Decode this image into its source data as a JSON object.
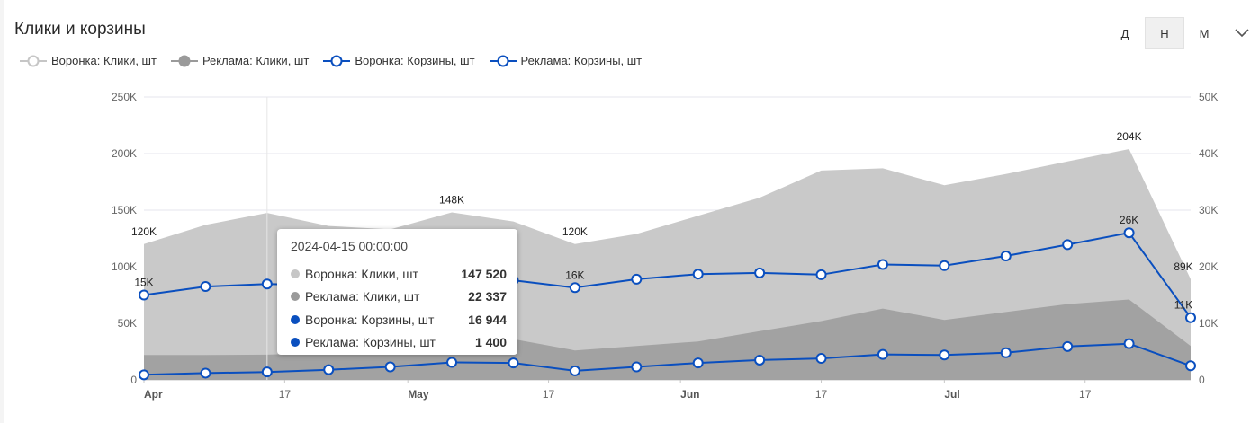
{
  "header": {
    "title": "Клики и корзины",
    "period_options": [
      "Д",
      "Н",
      "М"
    ],
    "period_selected": "Н"
  },
  "legend": [
    {
      "name": "Воронка: Клики, шт",
      "style": "hollow",
      "color": "#c6c6c6"
    },
    {
      "name": "Реклама: Клики, шт",
      "style": "filled",
      "color": "#9a9a9a"
    },
    {
      "name": "Воронка: Корзины, шт",
      "style": "hollow",
      "color": "#0a4fbf"
    },
    {
      "name": "Реклама: Корзины, шт",
      "style": "hollow",
      "color": "#0a4fbf"
    }
  ],
  "chart_data": {
    "type": "area",
    "x": [
      "2024-04-01",
      "2024-04-08",
      "2024-04-15",
      "2024-04-22",
      "2024-04-29",
      "2024-05-06",
      "2024-05-13",
      "2024-05-20",
      "2024-05-27",
      "2024-06-03",
      "2024-06-10",
      "2024-06-17",
      "2024-06-24",
      "2024-07-01",
      "2024-07-08",
      "2024-07-15",
      "2024-07-22",
      "2024-07-29"
    ],
    "x_ticks": [
      {
        "date": "2024-04-01",
        "label": "Apr",
        "month": true
      },
      {
        "date": "2024-04-17",
        "label": "17",
        "month": false
      },
      {
        "date": "2024-05-01",
        "label": "May",
        "month": true
      },
      {
        "date": "2024-05-17",
        "label": "17",
        "month": false
      },
      {
        "date": "2024-06-01",
        "label": "Jun",
        "month": true
      },
      {
        "date": "2024-06-17",
        "label": "17",
        "month": false
      },
      {
        "date": "2024-07-01",
        "label": "Jul",
        "month": true
      },
      {
        "date": "2024-07-17",
        "label": "17",
        "month": false
      }
    ],
    "y_left": {
      "ticks": [
        "0",
        "50K",
        "100K",
        "150K",
        "200K",
        "250K"
      ],
      "lim": [
        0,
        250000
      ]
    },
    "y_right": {
      "ticks": [
        "0",
        "10K",
        "20K",
        "30K",
        "40K",
        "50K"
      ],
      "lim": [
        0,
        50000
      ]
    },
    "grid": "horizontal",
    "series": [
      {
        "name": "Воронка: Клики, шт",
        "axis": "left",
        "kind": "area",
        "color": "#c9c9c9",
        "values": [
          120000,
          137000,
          147520,
          136000,
          133000,
          148000,
          140000,
          120000,
          129000,
          145000,
          161000,
          185000,
          187000,
          172000,
          182000,
          193000,
          204000,
          89000
        ],
        "labels": [
          [
            0,
            "120K"
          ],
          [
            5,
            "148K"
          ],
          [
            7,
            "120K"
          ],
          [
            16,
            "204K"
          ],
          [
            17,
            "89K"
          ]
        ]
      },
      {
        "name": "Реклама: Клики, шт",
        "axis": "left",
        "kind": "area",
        "color": "#a2a2a2",
        "values": [
          22000,
          22000,
          22337,
          24000,
          28000,
          36000,
          36000,
          26000,
          30000,
          34000,
          43000,
          52000,
          63000,
          53000,
          60000,
          67000,
          71000,
          30000
        ]
      },
      {
        "name": "Воронка: Корзины, шт",
        "axis": "right",
        "kind": "line",
        "color": "#0a4fbf",
        "values": [
          15000,
          16500,
          16944,
          16700,
          16500,
          16800,
          17600,
          16300,
          17800,
          18700,
          18900,
          18600,
          20400,
          20200,
          21900,
          23900,
          26000,
          11000
        ],
        "labels": [
          [
            0,
            "15K"
          ],
          [
            7,
            "16K"
          ],
          [
            16,
            "26K"
          ],
          [
            17,
            "11K"
          ]
        ]
      },
      {
        "name": "Реклама: Корзины, шт",
        "axis": "right",
        "kind": "line",
        "color": "#0a4fbf",
        "values": [
          900,
          1200,
          1400,
          1800,
          2300,
          3100,
          3000,
          1600,
          2300,
          3000,
          3500,
          3800,
          4500,
          4400,
          4800,
          5900,
          6400,
          2500
        ]
      }
    ]
  },
  "tooltip": {
    "date": "2024-04-15 00:00:00",
    "rows": [
      {
        "name": "Воронка: Клики, шт",
        "value": "147 520",
        "color": "#c6c6c6"
      },
      {
        "name": "Реклама: Клики, шт",
        "value": "22 337",
        "color": "#9a9a9a"
      },
      {
        "name": "Воронка: Корзины, шт",
        "value": "16 944",
        "color": "#0a4fbf"
      },
      {
        "name": "Реклама: Корзины, шт",
        "value": "1 400",
        "color": "#0a4fbf"
      }
    ]
  }
}
